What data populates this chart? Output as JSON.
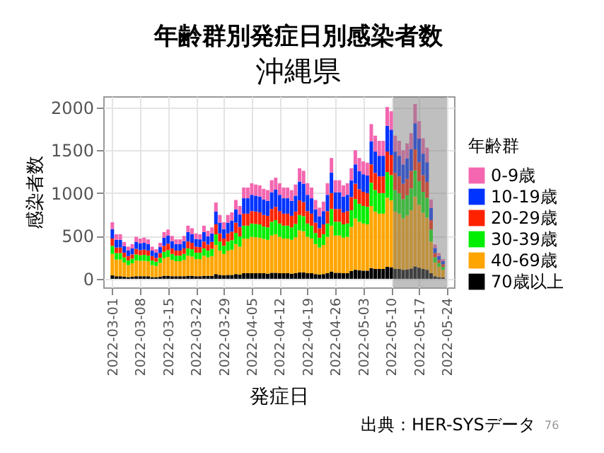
{
  "chart_data": {
    "type": "bar",
    "title": "年齢群別発症日別感染者数",
    "subtitle": "沖縄県",
    "xlabel": "発症日",
    "ylabel": "感染者数",
    "legend_title": "年齢群",
    "annotations": [
      "出典：HER-SYSデータ",
      "76"
    ],
    "stacked": true,
    "grid": true,
    "legend": "right",
    "x": [
      "2022-03-01",
      "2022-03-02",
      "2022-03-03",
      "2022-03-04",
      "2022-03-05",
      "2022-03-06",
      "2022-03-07",
      "2022-03-08",
      "2022-03-09",
      "2022-03-10",
      "2022-03-11",
      "2022-03-12",
      "2022-03-13",
      "2022-03-14",
      "2022-03-15",
      "2022-03-16",
      "2022-03-17",
      "2022-03-18",
      "2022-03-19",
      "2022-03-20",
      "2022-03-21",
      "2022-03-22",
      "2022-03-23",
      "2022-03-24",
      "2022-03-25",
      "2022-03-26",
      "2022-03-27",
      "2022-03-28",
      "2022-03-29",
      "2022-03-30",
      "2022-03-31",
      "2022-04-01",
      "2022-04-02",
      "2022-04-03",
      "2022-04-04",
      "2022-04-05",
      "2022-04-06",
      "2022-04-07",
      "2022-04-08",
      "2022-04-09",
      "2022-04-10",
      "2022-04-11",
      "2022-04-12",
      "2022-04-13",
      "2022-04-14",
      "2022-04-15",
      "2022-04-16",
      "2022-04-17",
      "2022-04-18",
      "2022-04-19",
      "2022-04-20",
      "2022-04-21",
      "2022-04-22",
      "2022-04-23",
      "2022-04-24",
      "2022-04-25",
      "2022-04-26",
      "2022-04-27",
      "2022-04-28",
      "2022-04-29",
      "2022-04-30",
      "2022-05-01",
      "2022-05-02",
      "2022-05-03",
      "2022-05-04",
      "2022-05-05",
      "2022-05-06",
      "2022-05-07",
      "2022-05-08",
      "2022-05-09",
      "2022-05-10",
      "2022-05-11",
      "2022-05-12",
      "2022-05-13",
      "2022-05-14",
      "2022-05-15",
      "2022-05-16",
      "2022-05-17",
      "2022-05-18",
      "2022-05-19",
      "2022-05-20",
      "2022-05-21",
      "2022-05-22",
      "2022-05-23"
    ],
    "xlim": [
      "2022-02-28T12:00",
      "2022-05-24"
    ],
    "xticks": [
      "2022-03-01",
      "2022-03-08",
      "2022-03-15",
      "2022-03-22",
      "2022-03-29",
      "2022-04-05",
      "2022-04-12",
      "2022-04-19",
      "2022-04-26",
      "2022-05-03",
      "2022-05-10",
      "2022-05-17",
      "2022-05-24"
    ],
    "ylim": [
      -100,
      2130
    ],
    "yticks": [
      0,
      500,
      1000,
      1500,
      2000
    ],
    "bands": [
      {
        "axis": "x",
        "from": "2022-05-10T12:00",
        "to": "2022-05-24",
        "color": "#808080"
      }
    ],
    "series": [
      {
        "name": "70歳以上",
        "color": "#000000",
        "values": [
          40,
          30,
          30,
          25,
          20,
          25,
          30,
          30,
          30,
          30,
          20,
          20,
          25,
          35,
          35,
          30,
          30,
          30,
          30,
          35,
          35,
          30,
          30,
          35,
          35,
          35,
          55,
          45,
          40,
          45,
          45,
          55,
          50,
          65,
          65,
          65,
          65,
          65,
          65,
          60,
          70,
          70,
          65,
          65,
          65,
          60,
          65,
          75,
          75,
          65,
          65,
          55,
          50,
          55,
          65,
          85,
          70,
          70,
          65,
          65,
          90,
          105,
          100,
          95,
          95,
          125,
          115,
          115,
          115,
          140,
          135,
          115,
          115,
          105,
          110,
          120,
          145,
          130,
          115,
          105,
          65,
          30,
          20,
          15
        ]
      },
      {
        "name": "40-69歳",
        "color": "#ffa500",
        "values": [
          250,
          195,
          195,
          165,
          140,
          155,
          185,
          180,
          180,
          175,
          140,
          130,
          160,
          205,
          220,
          190,
          175,
          175,
          190,
          235,
          225,
          200,
          200,
          235,
          215,
          230,
          340,
          285,
          250,
          285,
          295,
          350,
          325,
          405,
          405,
          425,
          420,
          415,
          400,
          395,
          435,
          450,
          425,
          405,
          405,
          395,
          420,
          490,
          480,
          425,
          405,
          350,
          315,
          340,
          425,
          535,
          435,
          435,
          415,
          425,
          515,
          600,
          565,
          550,
          540,
          725,
          670,
          645,
          645,
          805,
          780,
          670,
          645,
          600,
          630,
          680,
          815,
          735,
          655,
          610,
          370,
          160,
          120,
          90
        ]
      },
      {
        "name": "30-39歳",
        "color": "#00ee00",
        "values": [
          95,
          75,
          75,
          60,
          55,
          55,
          70,
          65,
          70,
          65,
          55,
          50,
          60,
          75,
          80,
          70,
          65,
          65,
          70,
          85,
          85,
          75,
          75,
          85,
          80,
          85,
          125,
          105,
          95,
          105,
          110,
          130,
          120,
          150,
          150,
          155,
          155,
          155,
          145,
          145,
          160,
          165,
          155,
          150,
          150,
          145,
          155,
          180,
          175,
          155,
          150,
          130,
          115,
          125,
          155,
          195,
          160,
          160,
          155,
          155,
          195,
          225,
          210,
          205,
          205,
          270,
          250,
          240,
          240,
          300,
          295,
          250,
          240,
          225,
          235,
          255,
          305,
          275,
          245,
          230,
          140,
          60,
          45,
          35
        ]
      },
      {
        "name": "20-29歳",
        "color": "#ff2200",
        "values": [
          85,
          65,
          65,
          55,
          50,
          50,
          65,
          60,
          60,
          60,
          50,
          45,
          55,
          70,
          75,
          65,
          60,
          60,
          65,
          80,
          75,
          70,
          65,
          80,
          70,
          80,
          115,
          95,
          85,
          95,
          100,
          120,
          110,
          140,
          140,
          145,
          145,
          140,
          135,
          135,
          150,
          155,
          145,
          140,
          140,
          135,
          145,
          170,
          165,
          145,
          140,
          120,
          110,
          115,
          145,
          185,
          150,
          150,
          140,
          145,
          155,
          180,
          170,
          165,
          160,
          215,
          200,
          195,
          195,
          240,
          235,
          200,
          195,
          180,
          190,
          205,
          245,
          220,
          195,
          185,
          110,
          50,
          35,
          30
        ]
      },
      {
        "name": "10-19歳",
        "color": "#0033ff",
        "values": [
          110,
          90,
          90,
          75,
          65,
          70,
          80,
          80,
          80,
          75,
          65,
          60,
          70,
          95,
          95,
          85,
          75,
          75,
          85,
          110,
          100,
          90,
          90,
          110,
          95,
          100,
          150,
          125,
          110,
          125,
          130,
          155,
          145,
          180,
          180,
          190,
          185,
          185,
          180,
          175,
          195,
          200,
          190,
          180,
          180,
          175,
          185,
          220,
          215,
          190,
          180,
          155,
          140,
          155,
          190,
          240,
          195,
          195,
          185,
          190,
          195,
          225,
          210,
          205,
          205,
          270,
          250,
          240,
          240,
          300,
          295,
          250,
          240,
          225,
          240,
          255,
          305,
          275,
          250,
          230,
          140,
          60,
          45,
          35
        ]
      },
      {
        "name": "0-9歳",
        "color": "#f466b0",
        "values": [
          80,
          65,
          65,
          50,
          45,
          50,
          60,
          55,
          60,
          55,
          45,
          40,
          50,
          65,
          70,
          60,
          55,
          55,
          60,
          75,
          70,
          65,
          60,
          75,
          65,
          70,
          105,
          90,
          80,
          90,
          95,
          110,
          100,
          125,
          125,
          135,
          130,
          130,
          125,
          125,
          140,
          140,
          135,
          125,
          125,
          125,
          130,
          155,
          150,
          135,
          125,
          110,
          100,
          110,
          135,
          170,
          140,
          140,
          130,
          135,
          140,
          165,
          155,
          150,
          150,
          200,
          185,
          175,
          175,
          220,
          215,
          185,
          175,
          165,
          175,
          185,
          225,
          205,
          180,
          170,
          100,
          40,
          35,
          25
        ]
      }
    ]
  }
}
